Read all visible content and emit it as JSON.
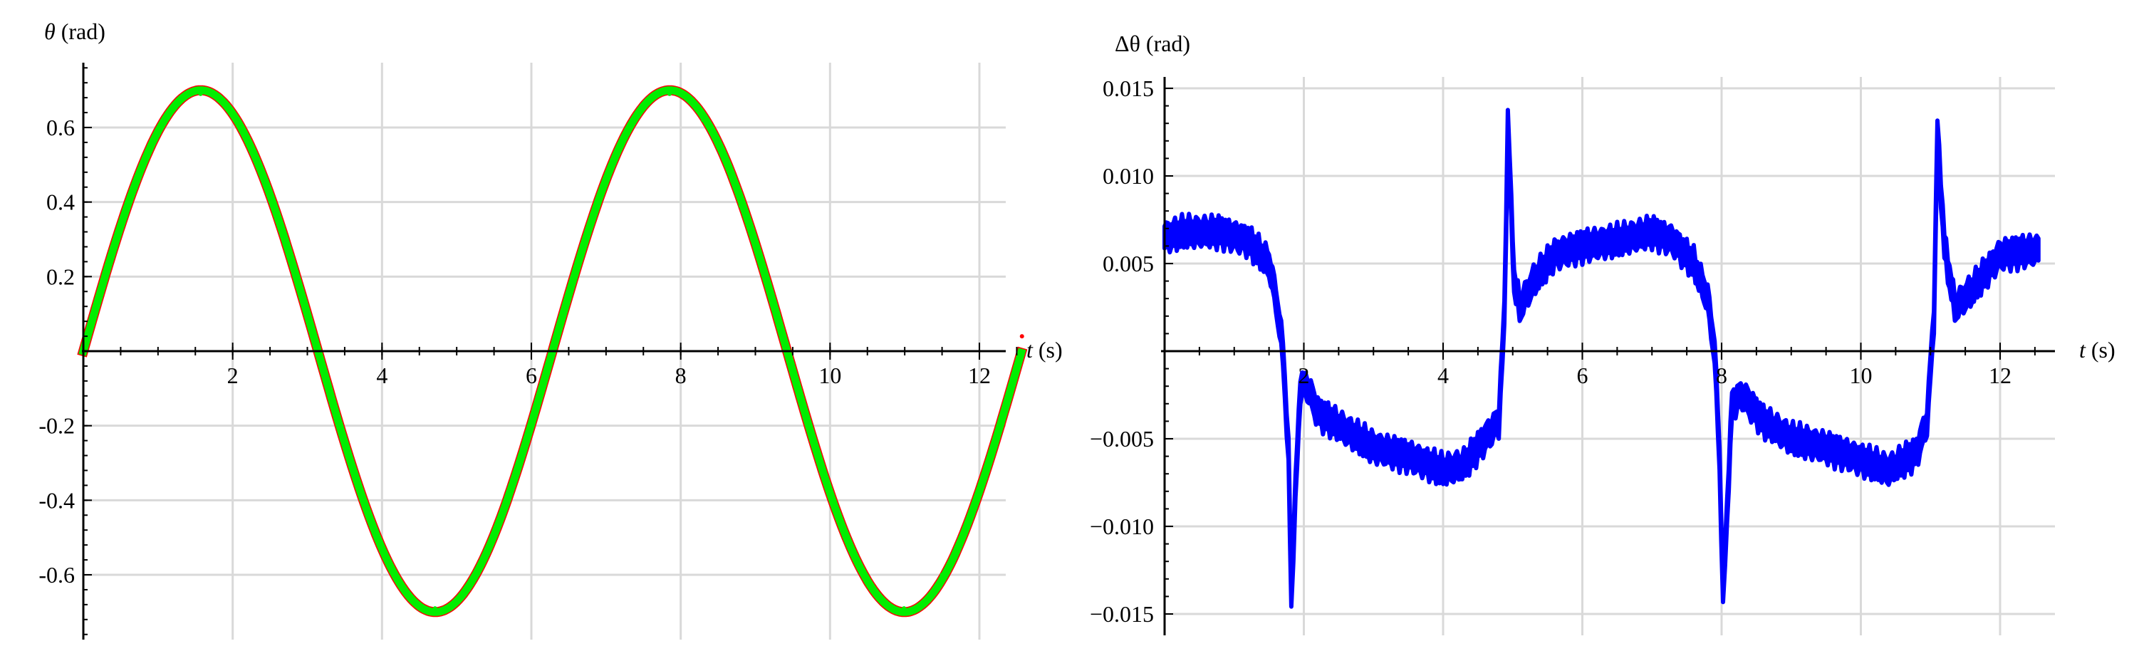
{
  "colors": {
    "background": "#ffffff",
    "grid": "#d9d9d9",
    "axis": "#000000",
    "series_red": "#ff0000",
    "series_green": "#00ee00",
    "series_blue": "#0000ff"
  },
  "chart_data": [
    {
      "type": "line",
      "ylabel_symbol": "θ",
      "ylabel_unit": " (rad)",
      "xlabel_symbol": "t",
      "xlabel_unit": " (s)",
      "xlim": [
        0,
        12.6
      ],
      "ylim": [
        -0.78,
        0.78
      ],
      "grid": true,
      "x_ticks": [
        2,
        4,
        6,
        8,
        10,
        12
      ],
      "x_tick_labels": [
        "2",
        "4",
        "6",
        "8",
        "10",
        "12"
      ],
      "y_ticks": [
        -0.6,
        -0.4,
        -0.2,
        0.2,
        0.4,
        0.6
      ],
      "y_tick_labels": [
        "-0.6",
        "-0.4",
        "-0.2",
        "0.2",
        "0.4",
        "0.6"
      ],
      "series": [
        {
          "color": "#ff0000",
          "amplitude": 0.7,
          "x": [
            0.0,
            0.5,
            1.0,
            1.57,
            2.0,
            2.5,
            3.14,
            3.5,
            4.0,
            4.71,
            5.0,
            5.5,
            6.28,
            6.8,
            7.3,
            7.85,
            8.3,
            8.8,
            9.42,
            9.9,
            10.4,
            10.99,
            11.5,
            12.0,
            12.57
          ],
          "y": [
            0.0,
            0.34,
            0.59,
            0.7,
            0.64,
            0.42,
            0.0,
            -0.25,
            -0.53,
            -0.7,
            -0.67,
            -0.49,
            0.0,
            0.35,
            0.6,
            0.7,
            0.62,
            0.39,
            0.0,
            -0.31,
            -0.58,
            -0.7,
            -0.6,
            -0.37,
            0.04
          ]
        },
        {
          "color": "#00ee00",
          "amplitude": 0.7,
          "x": [
            0.0,
            0.5,
            1.0,
            1.57,
            2.0,
            2.5,
            3.14,
            3.5,
            4.0,
            4.71,
            5.0,
            5.5,
            6.28,
            6.8,
            7.3,
            7.85,
            8.3,
            8.8,
            9.42,
            9.9,
            10.4,
            10.99,
            11.5,
            12.0,
            12.57
          ],
          "y": [
            0.0,
            0.33,
            0.59,
            0.69,
            0.64,
            0.42,
            0.0,
            -0.25,
            -0.53,
            -0.69,
            -0.67,
            -0.49,
            0.0,
            0.35,
            0.6,
            0.69,
            0.62,
            0.39,
            0.0,
            -0.31,
            -0.58,
            -0.69,
            -0.6,
            -0.37,
            0.0
          ]
        }
      ]
    },
    {
      "type": "line",
      "ylabel_symbol": "Δθ",
      "ylabel_unit": " (rad)",
      "xlabel_symbol": "t",
      "xlabel_unit": " (s)",
      "xlim": [
        -0.1,
        12.6
      ],
      "ylim": [
        -0.0158,
        0.0158
      ],
      "grid": true,
      "x_ticks": [
        2,
        4,
        6,
        8,
        10,
        12
      ],
      "x_tick_labels": [
        "2",
        "4",
        "6",
        "8",
        "10",
        "12"
      ],
      "y_ticks": [
        -0.015,
        -0.01,
        -0.005,
        0.005,
        0.01,
        0.015
      ],
      "y_tick_labels": [
        "−0.015",
        "−0.010",
        "−0.005",
        "0.005",
        "0.010",
        "0.015"
      ],
      "series": [
        {
          "color": "#0000ff",
          "band": 0.0009,
          "x": [
            0.0,
            0.3,
            0.8,
            1.2,
            1.5,
            1.6,
            1.7,
            1.78,
            1.82,
            1.88,
            1.95,
            2.05,
            2.2,
            2.6,
            3.0,
            3.5,
            4.0,
            4.3,
            4.6,
            4.8,
            4.88,
            4.93,
            4.98,
            5.02,
            5.1,
            5.3,
            5.6,
            6.0,
            6.5,
            7.0,
            7.3,
            7.6,
            7.8,
            7.9,
            7.97,
            8.02,
            8.08,
            8.15,
            8.3,
            8.6,
            9.0,
            9.5,
            10.0,
            10.4,
            10.8,
            10.95,
            11.05,
            11.1,
            11.2,
            11.35,
            11.6,
            12.0,
            12.55
          ],
          "y": [
            0.0065,
            0.0068,
            0.0068,
            0.0063,
            0.005,
            0.003,
            0.0,
            -0.006,
            -0.014,
            -0.008,
            -0.002,
            -0.002,
            -0.0035,
            -0.0045,
            -0.0055,
            -0.006,
            -0.0068,
            -0.0065,
            -0.005,
            -0.004,
            0.002,
            0.013,
            0.008,
            0.004,
            0.0025,
            0.004,
            0.0055,
            0.006,
            0.0063,
            0.0068,
            0.0063,
            0.005,
            0.003,
            0.0,
            -0.006,
            -0.014,
            -0.009,
            -0.003,
            -0.0025,
            -0.004,
            -0.005,
            -0.0055,
            -0.0062,
            -0.0068,
            -0.0058,
            -0.004,
            0.002,
            0.0125,
            0.006,
            0.0025,
            0.0035,
            0.0055,
            0.0058
          ]
        }
      ]
    }
  ]
}
